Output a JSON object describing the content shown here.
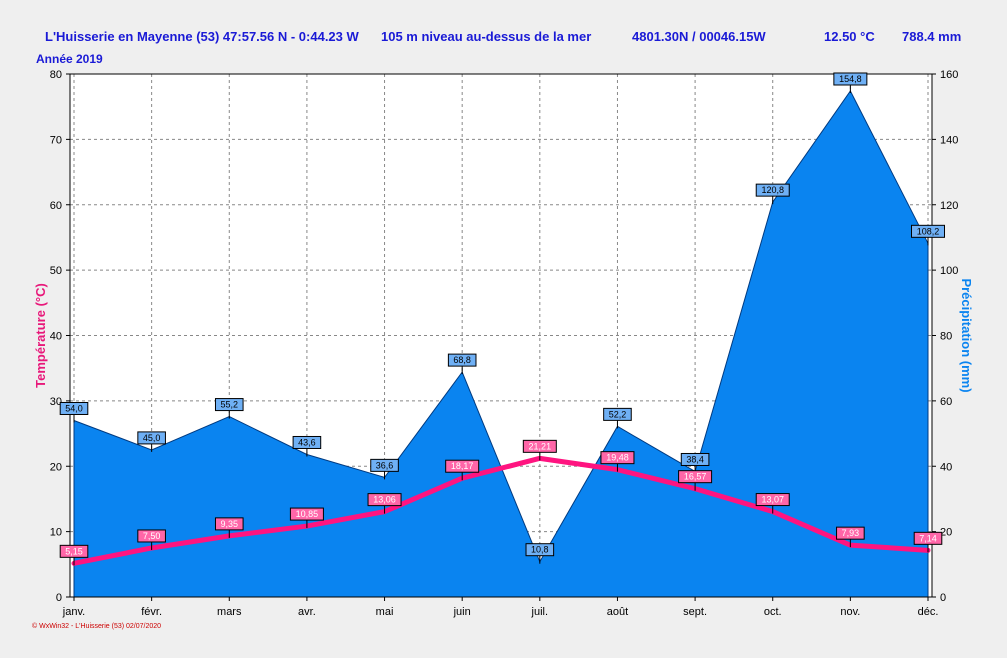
{
  "header": {
    "station": "L'Huisserie en Mayenne (53) 47:57.56 N - 0:44.23 W",
    "altitude": "105 m niveau au-dessus de la mer",
    "grid_ref": "4801.30N / 00046.15W",
    "mean_temp": "12.50 °C",
    "total_precip": "788.4 mm",
    "year": "Année 2019"
  },
  "footer": "© WxWin32 - L'Huisserie (53) 02/07/2020",
  "colors": {
    "background": "#efefef",
    "plot_bg": "#ffffff",
    "precip_fill": "#0a84f0",
    "temp_line": "#ff1480",
    "header_text": "#1a1ad6",
    "temp_axis_label": "#e8187a",
    "precip_axis_label": "#0a84f0"
  },
  "chart_data": {
    "type": "area",
    "categories": [
      "janv.",
      "févr.",
      "mars",
      "avr.",
      "mai",
      "juin",
      "juil.",
      "août",
      "sept.",
      "oct.",
      "nov.",
      "déc."
    ],
    "series": [
      {
        "type": "area",
        "axis": "right",
        "values": [
          54.0,
          45.0,
          55.2,
          43.6,
          36.6,
          68.8,
          10.8,
          52.2,
          38.4,
          120.8,
          154.8,
          108.2
        ],
        "labels": [
          "54,0",
          "45,0",
          "55,2",
          "43,6",
          "36,6",
          "68,8",
          "10,8",
          "52,2",
          "38,4",
          "120,8",
          "154,8",
          "108,2"
        ]
      },
      {
        "type": "line",
        "axis": "left",
        "values": [
          5.15,
          7.5,
          9.35,
          10.85,
          13.06,
          18.17,
          21.21,
          19.48,
          16.57,
          13.07,
          7.93,
          7.14
        ],
        "labels": [
          "5,15",
          "7,50",
          "9,35",
          "10,85",
          "13,06",
          "18,17",
          "21,21",
          "19,48",
          "16,57",
          "13,07",
          "7,93",
          "7,14"
        ]
      }
    ],
    "y_left": {
      "label": "Température  (°C)",
      "range": [
        0,
        80
      ],
      "ticks": [
        "0",
        "10",
        "20",
        "30",
        "40",
        "50",
        "60",
        "70",
        "80"
      ]
    },
    "y_right": {
      "label": "Précipitation  (mm)",
      "range": [
        0,
        160
      ],
      "ticks": [
        "0",
        "20",
        "40",
        "60",
        "80",
        "100",
        "120",
        "140",
        "160"
      ]
    },
    "grid": true,
    "legend": "none"
  }
}
